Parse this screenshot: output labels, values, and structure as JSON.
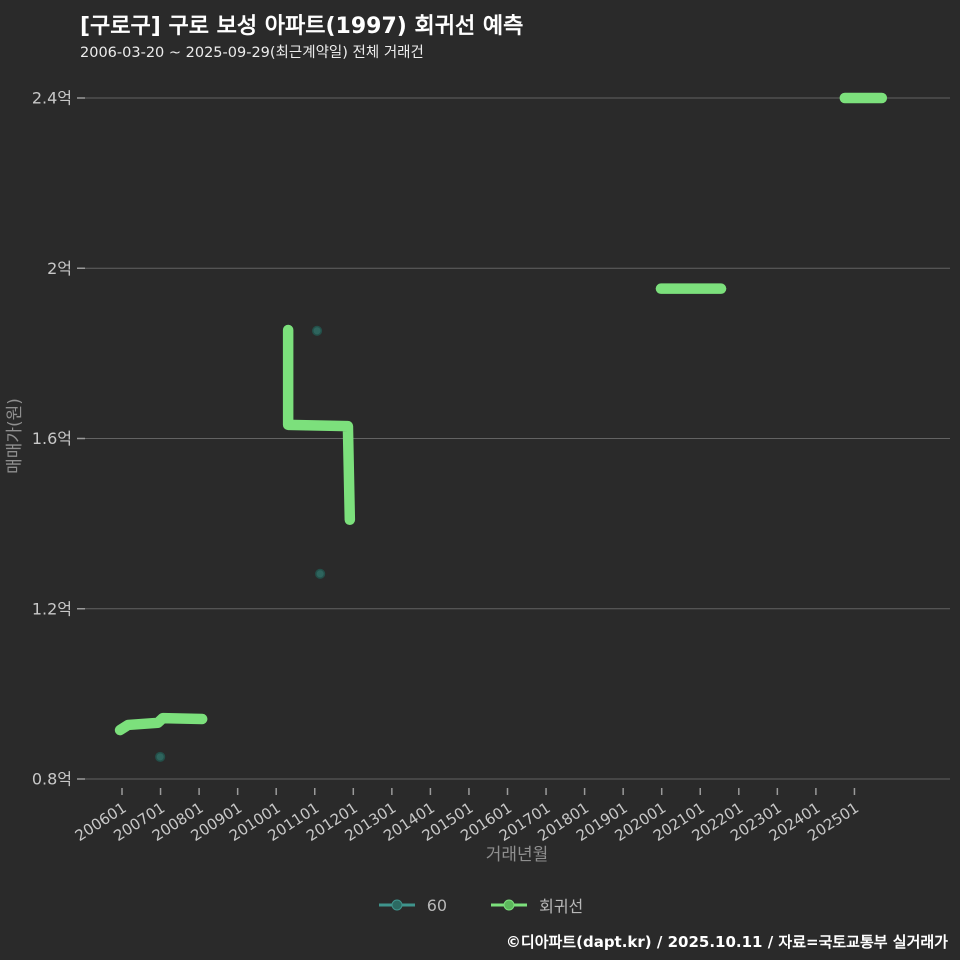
{
  "header": {
    "title": "[구로구] 구로 보성 아파트(1997) 회귀선 예측",
    "subtitle": "2006-03-20 ~ 2025-09-29(최근계약일) 전체 거래건"
  },
  "footer": {
    "credit": "©디아파트(dapt.kr) / 2025.10.11 / 자료=국토교통부 실거래가"
  },
  "legend": [
    {
      "label": "60",
      "line_color": "#3f948c",
      "dot_color": "#2c6a62"
    },
    {
      "label": "회귀선",
      "line_color": "#7ce07c",
      "dot_color": "#5db85d"
    }
  ],
  "colors": {
    "background": "#2a2a2a",
    "gridline": "#6e6e6e",
    "tick": "#9a9a9a",
    "tick_label": "#c8c8c8",
    "axis_title": "#8f8f8f",
    "regression_green": "#7ce07c",
    "scatter_teal_fill": "#2e645d",
    "scatter_teal_stroke": "#234f49"
  },
  "chart_data": {
    "type": "scatter",
    "title": "[구로구] 구로 보성 아파트(1997) 회귀선 예측",
    "xlabel": "거래년월",
    "ylabel": "매매가(원)",
    "x_tick_labels": [
      "200601",
      "200701",
      "200801",
      "200901",
      "201001",
      "201101",
      "201201",
      "201301",
      "201401",
      "201501",
      "201601",
      "201701",
      "201801",
      "201901",
      "202001",
      "202101",
      "202201",
      "202301",
      "202401",
      "202501"
    ],
    "y_ticks": [
      {
        "label": "0.8억",
        "value": 0.8
      },
      {
        "label": "1.2억",
        "value": 1.2
      },
      {
        "label": "1.6억",
        "value": 1.6
      },
      {
        "label": "2억",
        "value": 2.0
      },
      {
        "label": "2.4억",
        "value": 2.4
      }
    ],
    "xlim": [
      2005.0,
      2027.5
    ],
    "ylim": [
      0.77,
      2.45
    ],
    "grid": true,
    "legend_position": "bottom-center",
    "y_unit": "억원",
    "series": [
      {
        "name": "60",
        "type": "scatter",
        "points": [
          {
            "x": 2006.99,
            "y": 0.852
          },
          {
            "x": 2011.06,
            "y": 1.853
          },
          {
            "x": 2011.14,
            "y": 1.282
          }
        ]
      },
      {
        "name": "회귀선",
        "type": "line",
        "segments": [
          [
            {
              "x": 2005.95,
              "y": 0.915
            },
            {
              "x": 2006.16,
              "y": 0.927
            },
            {
              "x": 2006.93,
              "y": 0.932
            },
            {
              "x": 2007.06,
              "y": 0.943
            },
            {
              "x": 2008.08,
              "y": 0.941
            }
          ],
          [
            {
              "x": 2010.31,
              "y": 1.855
            },
            {
              "x": 2010.31,
              "y": 1.632
            },
            {
              "x": 2011.86,
              "y": 1.629
            },
            {
              "x": 2011.91,
              "y": 1.409
            }
          ],
          [
            {
              "x": 2019.98,
              "y": 1.952
            },
            {
              "x": 2021.54,
              "y": 1.952
            }
          ],
          [
            {
              "x": 2024.75,
              "y": 2.4
            },
            {
              "x": 2025.71,
              "y": 2.4
            }
          ]
        ]
      }
    ]
  }
}
